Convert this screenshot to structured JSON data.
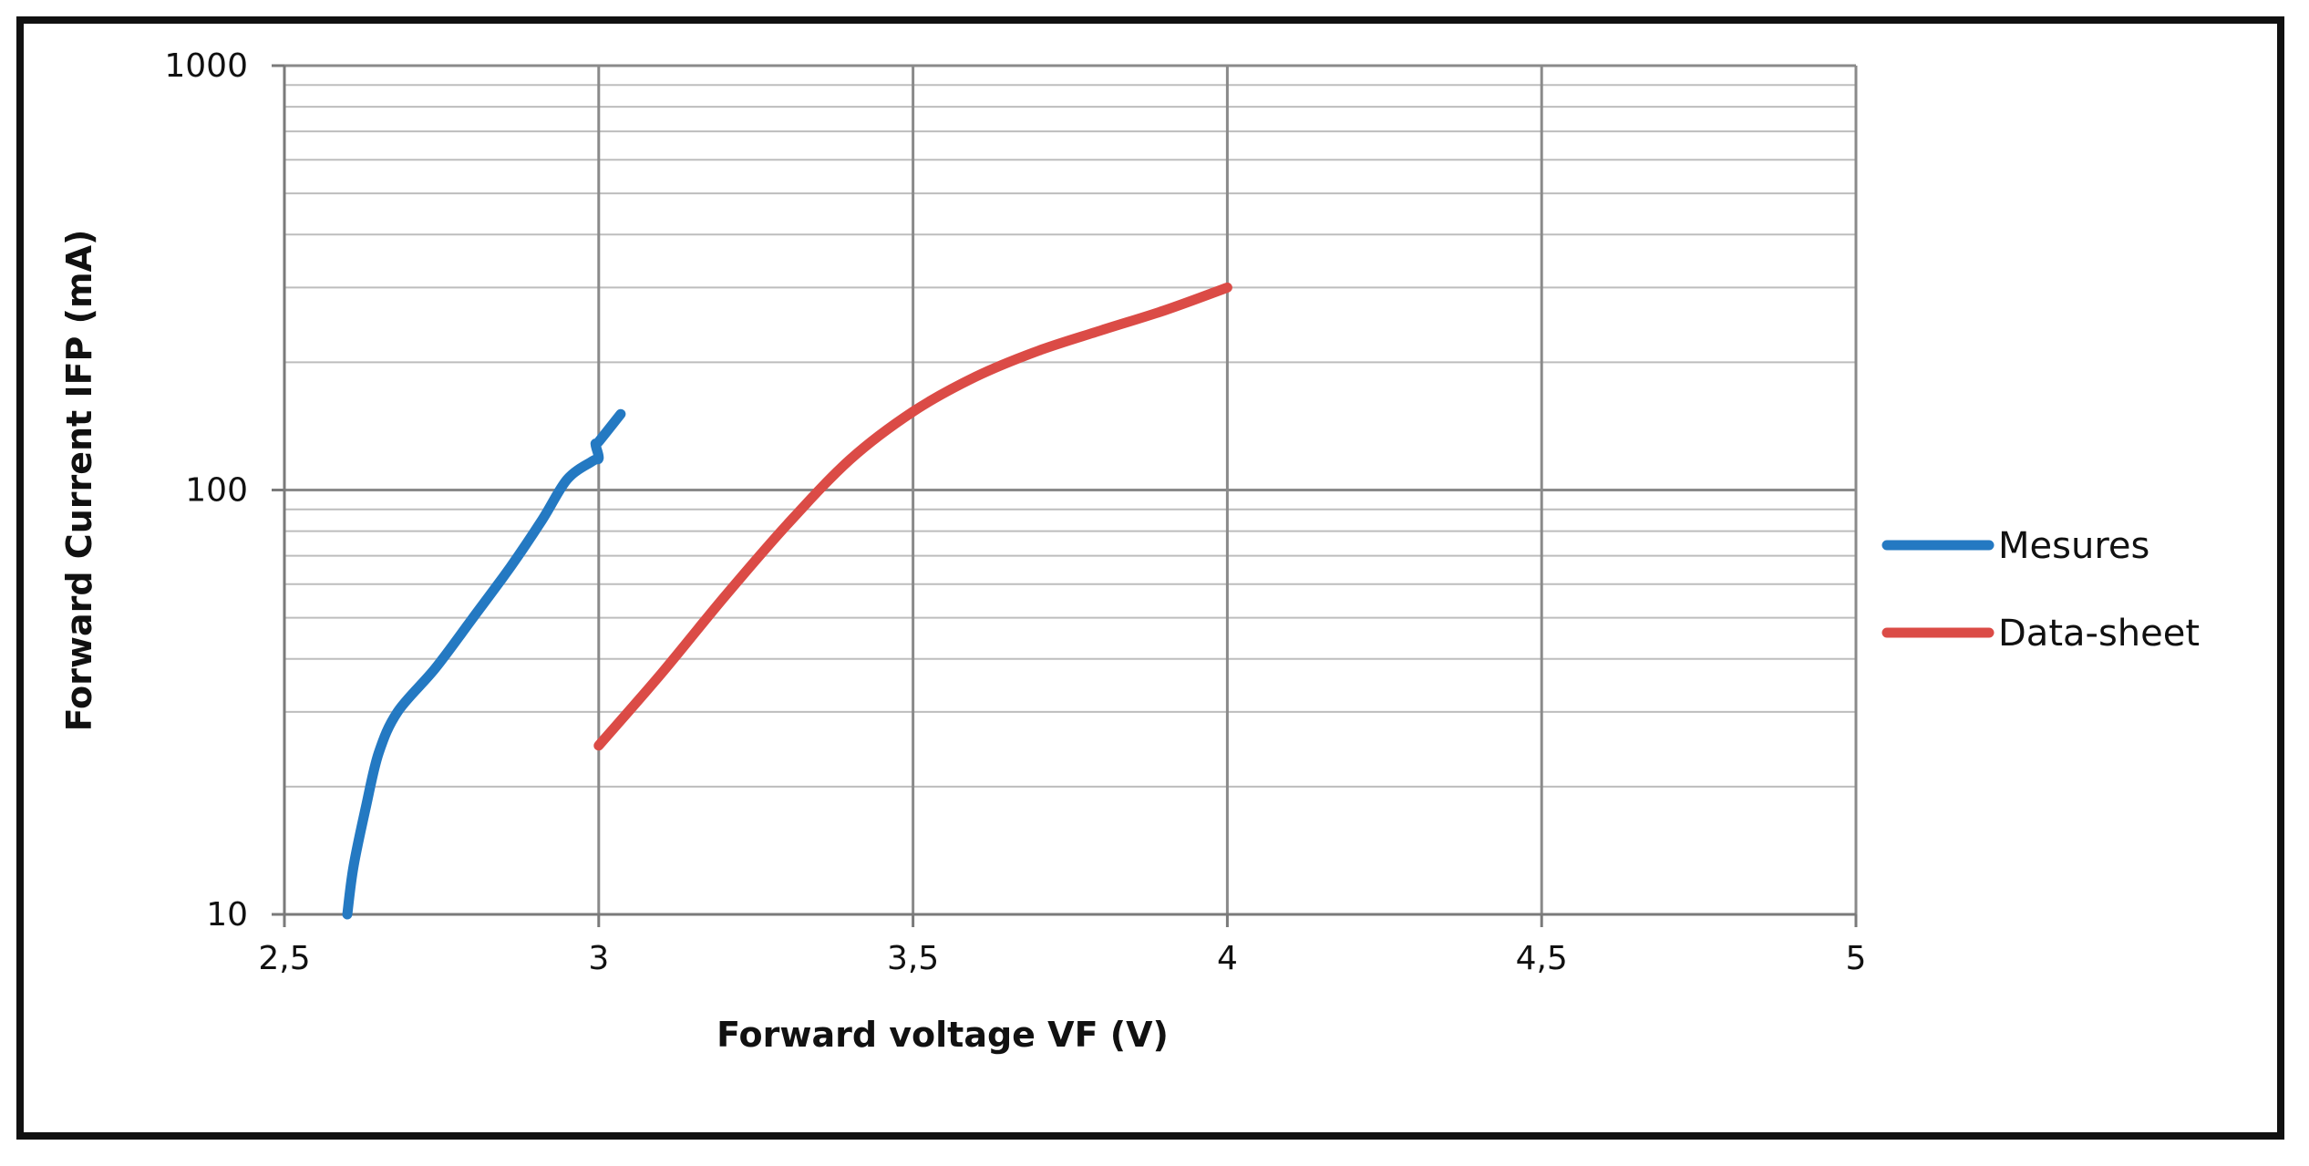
{
  "chart_data": {
    "type": "line",
    "title": "",
    "xlabel": "Forward voltage VF (V)",
    "ylabel": "Forward Current IFP (mA)",
    "xlim": [
      2.5,
      5
    ],
    "ylim": [
      10,
      1000
    ],
    "yscale": "log",
    "grid": true,
    "legend_position": "right",
    "x_ticks": [
      "2,5",
      "3",
      "3,5",
      "4",
      "4,5",
      "5"
    ],
    "x_tick_values": [
      2.5,
      3,
      3.5,
      4,
      4.5,
      5
    ],
    "y_ticks": [
      "10",
      "100",
      "1000"
    ],
    "y_tick_values": [
      10,
      100,
      1000
    ],
    "series": [
      {
        "name": "Mesures",
        "color": "#2479C2",
        "points": [
          [
            2.6,
            10
          ],
          [
            2.61,
            13
          ],
          [
            2.63,
            18
          ],
          [
            2.65,
            24
          ],
          [
            2.68,
            30
          ],
          [
            2.74,
            38
          ],
          [
            2.8,
            50
          ],
          [
            2.86,
            66
          ],
          [
            2.91,
            85
          ],
          [
            2.95,
            106
          ],
          [
            2.99,
            117
          ],
          [
            3.0,
            119
          ],
          [
            2.995,
            128
          ],
          [
            3.0,
            130
          ],
          [
            3.035,
            151
          ]
        ]
      },
      {
        "name": "Data-sheet",
        "color": "#DB4B46",
        "points": [
          [
            3.0,
            25
          ],
          [
            3.1,
            37
          ],
          [
            3.2,
            56
          ],
          [
            3.3,
            83
          ],
          [
            3.4,
            118
          ],
          [
            3.5,
            153
          ],
          [
            3.6,
            185
          ],
          [
            3.7,
            213
          ],
          [
            3.8,
            238
          ],
          [
            3.9,
            265
          ],
          [
            4.0,
            300
          ]
        ]
      }
    ]
  }
}
